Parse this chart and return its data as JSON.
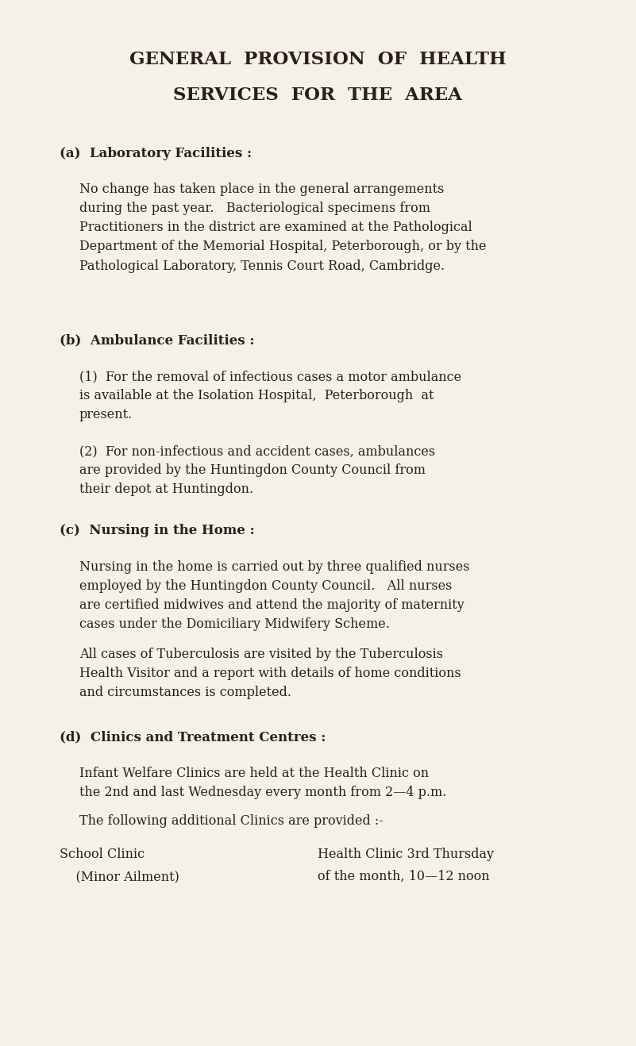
{
  "background_color": "#f5f0e8",
  "text_color": "#2a2018",
  "title1": "GENERAL  PROVISION  OF  HEALTH",
  "title2": "SERVICES  FOR  THE  AREA",
  "section_a_header": "(a)  Laboratory Facilities :",
  "section_a_body": "No change has taken place in the general arrangements\nduring the past year.   Bacteriological specimens from\nPractitioners in the district are examined at the Pathological\nDepartment of the Memorial Hospital, Peterborough, or by the\nPathological Laboratory, Tennis Court Road, Cambridge.",
  "section_b_header": "(b)  Ambulance Facilities :",
  "section_b1": "(1)  For the removal of infectious cases a motor ambulance\nis available at the Isolation Hospital,  Peterborough  at\npresent.",
  "section_b2": "(2)  For non-infectious and accident cases, ambulances\nare provided by the Huntingdon County Council from\ntheir depot at Huntingdon.",
  "section_c_header": "(c)  Nursing in the Home :",
  "section_c1": "Nursing in the home is carried out by three qualified nurses\nemployed by the Huntingdon County Council.   All nurses\nare certified midwives and attend the majority of maternity\ncases under the Domiciliary Midwifery Scheme.",
  "section_c2": "All cases of Tuberculosis are visited by the Tuberculosis\nHealth Visitor and a report with details of home conditions\nand circumstances is completed.",
  "section_d_header": "(d)  Clinics and Treatment Centres :",
  "section_d1": "Infant Welfare Clinics are held at the Health Clinic on\nthe 2nd and last Wednesday every month from 2—4 p.m.",
  "section_d2": "The following additional Clinics are provided :-",
  "section_d_col1_line1": "School Clinic",
  "section_d_col1_line2": "    (Minor Ailment)",
  "section_d_col2_line1": "Health Clinic 3rd Thursday",
  "section_d_col2_line2": "of the month, 10—12 noon"
}
